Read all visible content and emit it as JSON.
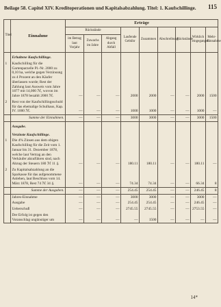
{
  "header": {
    "title": "Beilage 58. Capitel XIV. Kreditoperationen und Kapitalsabzahlung. Titel: 1. Kaufschillinge.",
    "page": "115"
  },
  "table": {
    "group": "Erträge",
    "sub_group": "Rückstände",
    "columns": [
      "Titel",
      "Einnahme",
      "im Betrag laut Vorjahr",
      "Zuwachs im Jahre",
      "Abgang durch Abfall",
      "Laufende Gebühr",
      "Zusammen",
      "Abschreibung",
      "Rückstände",
      "Wirklich eingegangen",
      "Mehr-Einnahme"
    ],
    "rows": [
      {
        "heading": "Erhaltene Kaufschillinge."
      },
      {
        "num": "1",
        "text": "Kaufschilling für die Gartenparzelle Pl.-Nr. 2000 zu 0,10 ha, welche gegen Verzinsung zu 4 Prozent an den Käufer überlassen wurde; Rest der Zahlung laut Ausweis vom Jahre 1877 mit 14,000 ℳ, wovon im Jahre 1878 bezahlt 2000 ℳ.",
        "values": [
          "—",
          "—",
          "—",
          "2000",
          "2000",
          "—",
          "—",
          "2000",
          "1500"
        ]
      },
      {
        "num": "2",
        "text": "Rest von der Kaufschillingsschuld für das ehemalige Schulhaus, Kap. IV. 1000 ℳ.",
        "values": [
          "—",
          "—",
          "—",
          "1000",
          "1000",
          "—",
          "—",
          "1000",
          "—"
        ]
      },
      {
        "sum": "Summe der Einnahmen.",
        "values": [
          "—",
          "—",
          "—",
          "3000",
          "3000",
          "—",
          "—",
          "3000",
          "1500"
        ]
      },
      {
        "heading": "Ausgabe."
      },
      {
        "heading": "Verzinste Kaufschillinge."
      },
      {
        "num": "1",
        "text": "Die 4% Zinsen aus dem obigen Kaufschilling für die Zeit vom 1. Januar bis 31. Dezember 1878, welche laut Vertrag an den Verkäufer abzuführen sind, nach Abzug der Steuern 180 ℳ 11 ₰.",
        "values": [
          "—",
          "—",
          "—",
          "180.11",
          "180.11",
          "—",
          "—",
          "180.11",
          "—"
        ]
      },
      {
        "num": "2",
        "text": "Zu Kapitalsabzahlung an die Sparkasse für das aufgenommene Anlehen, laut Beschluss vom 14. März 1878, Rest 74 ℳ 34 ₰.",
        "values": [
          "—",
          "—",
          "—",
          "74.34",
          "74.34",
          "—",
          "—",
          "66.34",
          "8"
        ]
      },
      {
        "sum": "Summe der Ausgaben.",
        "values": [
          "—",
          "—",
          "—",
          "254.45",
          "254.45",
          "—",
          "—",
          "246.45",
          "8"
        ]
      },
      {
        "text": "Jahres-Einnahme",
        "values": [
          "—",
          "—",
          "—",
          "3000",
          "3000",
          "—",
          "—",
          "3000",
          "—"
        ]
      },
      {
        "text": "Ausgabe",
        "values": [
          "—",
          "—",
          "—",
          "254.45",
          "254.45",
          "—",
          "—",
          "246.45",
          "—"
        ]
      },
      {
        "text": "Ueberschuß",
        "values": [
          "—",
          "—",
          "—",
          "2745.55",
          "2745.55",
          "—",
          "—",
          "2753.55",
          "—"
        ]
      },
      {
        "text": "Der Erfolg ist gegen den Voranschlag ungünstiger um",
        "values": [
          "—",
          "—",
          "—",
          "—",
          "1500",
          "—",
          "—",
          "—",
          "—"
        ]
      }
    ]
  },
  "footer": "14*"
}
